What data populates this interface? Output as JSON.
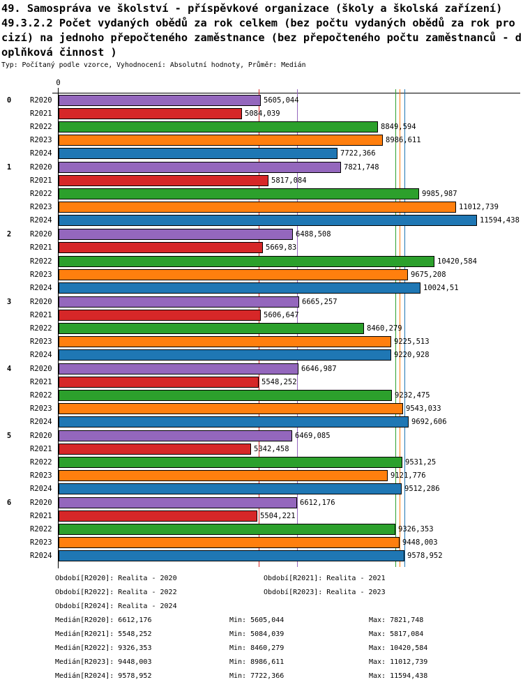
{
  "header": {
    "title_lines": [
      "49. Samospráva ve školství - příspěvkové organizace (školy a školská zařízení)",
      "49.3.2.2 Počet vydaných obědů za rok celkem (bez počtu vydaných obědů za rok pro",
      "cizí) na jednoho přepočteného zaměstnance (bez přepočteného počtu zaměstnanců - d",
      "oplňková činnost )"
    ],
    "subtitle": "Typ: Počítaný podle vzorce, Vyhodnocení: Absolutní hodnoty, Průměr: Medián"
  },
  "chart_data": {
    "type": "bar",
    "orientation": "horizontal",
    "origin_label": "0",
    "xlim": [
      0,
      11594.438
    ],
    "grid": false,
    "legend_position": "bottom",
    "groups": [
      "0",
      "1",
      "2",
      "3",
      "4",
      "5",
      "6"
    ],
    "series": [
      {
        "name": "R2020",
        "color": "#9467bd",
        "median": 6612.176
      },
      {
        "name": "R2021",
        "color": "#d62728",
        "median": 5548.252
      },
      {
        "name": "R2022",
        "color": "#2ca02c",
        "median": 9326.353
      },
      {
        "name": "R2023",
        "color": "#ff7f0e",
        "median": 9448.003
      },
      {
        "name": "R2024",
        "color": "#1f77b4",
        "median": 9578.952
      }
    ],
    "values": [
      [
        5605.044,
        5084.039,
        8849.594,
        8986.611,
        7722.366
      ],
      [
        7821.748,
        5817.084,
        9985.987,
        11012.739,
        11594.438
      ],
      [
        6488.508,
        5669.83,
        10420.584,
        9675.208,
        10024.51
      ],
      [
        6665.257,
        5606.647,
        8460.279,
        9225.513,
        9220.928
      ],
      [
        6646.987,
        5548.252,
        9232.475,
        9543.033,
        9692.606
      ],
      [
        6469.085,
        5342.458,
        9531.25,
        9121.776,
        9512.286
      ],
      [
        6612.176,
        5504.221,
        9326.353,
        9448.003,
        9578.952
      ]
    ],
    "value_labels": [
      [
        "5605,044",
        "5084,039",
        "8849,594",
        "8986,611",
        "7722,366"
      ],
      [
        "7821,748",
        "5817,084",
        "9985,987",
        "11012,739",
        "11594,438"
      ],
      [
        "6488,508",
        "5669,83",
        "10420,584",
        "9675,208",
        "10024,51"
      ],
      [
        "6665,257",
        "5606,647",
        "8460,279",
        "9225,513",
        "9220,928"
      ],
      [
        "6646,987",
        "5548,252",
        "9232,475",
        "9543,033",
        "9692,606"
      ],
      [
        "6469,085",
        "5342,458",
        "9531,25",
        "9121,776",
        "9512,286"
      ],
      [
        "6612,176",
        "5504,221",
        "9326,353",
        "9448,003",
        "9578,952"
      ]
    ]
  },
  "legend": {
    "items": [
      "Období[R2020]: Realita - 2020",
      "Období[R2021]: Realita - 2021",
      "Období[R2022]: Realita - 2022",
      "Období[R2023]: Realita - 2023",
      "Období[R2024]: Realita - 2024"
    ]
  },
  "stats": {
    "rows": [
      {
        "median": "Medián[R2020]: 6612,176",
        "min": "Min: 5605,044",
        "max": "Max: 7821,748"
      },
      {
        "median": "Medián[R2021]: 5548,252",
        "min": "Min: 5084,039",
        "max": "Max: 5817,084"
      },
      {
        "median": "Medián[R2022]: 9326,353",
        "min": "Min: 8460,279",
        "max": "Max: 10420,584"
      },
      {
        "median": "Medián[R2023]: 9448,003",
        "min": "Min: 8986,611",
        "max": "Max: 11012,739"
      },
      {
        "median": "Medián[R2024]: 9578,952",
        "min": "Min: 7722,366",
        "max": "Max: 11594,438"
      }
    ]
  }
}
